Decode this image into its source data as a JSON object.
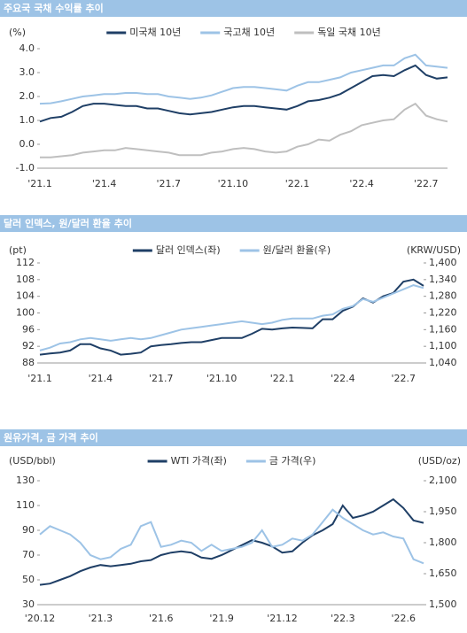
{
  "chart_data": [
    {
      "type": "line",
      "title": "주요국 국채 수익률 추이",
      "ylabel": "(%)",
      "categories": [
        "'21.1",
        null,
        null,
        null,
        null,
        null,
        "'21.4",
        null,
        null,
        null,
        null,
        null,
        "'21.7",
        null,
        null,
        null,
        null,
        null,
        "'21.10",
        null,
        null,
        null,
        null,
        null,
        "'22.1",
        null,
        null,
        null,
        null,
        null,
        "'22.4",
        null,
        null,
        null,
        null,
        null,
        "'22.7",
        null,
        null
      ],
      "ylim": [
        -1,
        4
      ],
      "yticks": [
        {
          "value": -1,
          "label": "-1.0"
        },
        {
          "value": 0,
          "label": "0.0"
        },
        {
          "value": 1,
          "label": "1.0"
        },
        {
          "value": 2,
          "label": "2.0"
        },
        {
          "value": 3,
          "label": "3.0"
        },
        {
          "value": 4,
          "label": "4.0"
        }
      ],
      "series": [
        {
          "name": "미국채 10년",
          "color": "#1f3f66",
          "values": [
            0.95,
            1.1,
            1.15,
            1.35,
            1.6,
            1.7,
            1.7,
            1.65,
            1.6,
            1.6,
            1.5,
            1.5,
            1.4,
            1.3,
            1.25,
            1.3,
            1.35,
            1.45,
            1.55,
            1.6,
            1.6,
            1.55,
            1.5,
            1.45,
            1.6,
            1.8,
            1.85,
            1.95,
            2.1,
            2.35,
            2.6,
            2.85,
            2.9,
            2.85,
            3.1,
            3.3,
            2.9,
            2.75,
            2.8
          ]
        },
        {
          "name": "국고채 10년",
          "color": "#9dc3e6",
          "values": [
            1.7,
            1.72,
            1.8,
            1.9,
            2.0,
            2.05,
            2.1,
            2.1,
            2.15,
            2.15,
            2.1,
            2.1,
            2.0,
            1.95,
            1.9,
            1.95,
            2.05,
            2.2,
            2.35,
            2.4,
            2.4,
            2.35,
            2.3,
            2.25,
            2.45,
            2.6,
            2.6,
            2.7,
            2.8,
            3.0,
            3.1,
            3.2,
            3.3,
            3.3,
            3.6,
            3.75,
            3.3,
            3.25,
            3.2
          ]
        },
        {
          "name": "독일 국채 10년",
          "color": "#bfbfbf",
          "values": [
            -0.55,
            -0.55,
            -0.5,
            -0.45,
            -0.35,
            -0.3,
            -0.25,
            -0.25,
            -0.15,
            -0.2,
            -0.25,
            -0.3,
            -0.35,
            -0.45,
            -0.45,
            -0.45,
            -0.35,
            -0.3,
            -0.2,
            -0.15,
            -0.2,
            -0.3,
            -0.35,
            -0.3,
            -0.1,
            0.0,
            0.2,
            0.15,
            0.4,
            0.55,
            0.8,
            0.9,
            1.0,
            1.05,
            1.45,
            1.7,
            1.2,
            1.05,
            0.95
          ]
        }
      ]
    },
    {
      "type": "line",
      "title": "달러 인덱스, 원/달러 환율 추이",
      "ylabel": "(pt)",
      "y2label": "(KRW/USD)",
      "categories": [
        "'21.1",
        null,
        null,
        null,
        null,
        null,
        "'21.4",
        null,
        null,
        null,
        null,
        null,
        "'21.7",
        null,
        null,
        null,
        null,
        null,
        "'21.10",
        null,
        null,
        null,
        null,
        null,
        "'22.1",
        null,
        null,
        null,
        null,
        null,
        "'22.4",
        null,
        null,
        null,
        null,
        null,
        "'22.7",
        null,
        null
      ],
      "ylim": [
        88,
        112
      ],
      "yticks": [
        88,
        92,
        96,
        100,
        104,
        108,
        112
      ],
      "y2lim": [
        1040,
        1400
      ],
      "y2ticks": [
        {
          "value": 1040,
          "label": "1,040"
        },
        {
          "value": 1100,
          "label": "1,100"
        },
        {
          "value": 1160,
          "label": "1,160"
        },
        {
          "value": 1220,
          "label": "1,220"
        },
        {
          "value": 1280,
          "label": "1,280"
        },
        {
          "value": 1340,
          "label": "1,340"
        },
        {
          "value": 1400,
          "label": "1,400"
        }
      ],
      "series": [
        {
          "name": "달러 인덱스(좌)",
          "color": "#1f3f66",
          "values": [
            90,
            90.3,
            90.5,
            91,
            92.5,
            92.5,
            91.5,
            91,
            90,
            90.2,
            90.5,
            92,
            92.3,
            92.5,
            92.8,
            93,
            93,
            93.5,
            94,
            94,
            94,
            95,
            96.2,
            96,
            96.3,
            96.5,
            96.4,
            96.3,
            98.5,
            98.5,
            100.5,
            101.5,
            103.5,
            102.5,
            104,
            104.8,
            107.5,
            108,
            106.5
          ]
        },
        {
          "name": "원/달러 환율(우)",
          "color": "#9dc3e6",
          "axis": "y2",
          "values": [
            1085,
            1095,
            1110,
            1115,
            1125,
            1130,
            1125,
            1120,
            1125,
            1130,
            1125,
            1130,
            1140,
            1150,
            1160,
            1165,
            1170,
            1175,
            1180,
            1185,
            1190,
            1185,
            1180,
            1185,
            1195,
            1200,
            1200,
            1200,
            1210,
            1215,
            1235,
            1245,
            1270,
            1260,
            1275,
            1290,
            1305,
            1320,
            1310
          ]
        }
      ]
    },
    {
      "type": "line",
      "title": "원유가격, 금 가격 추이",
      "ylabel": "(USD/bbl)",
      "y2label": "(USD/oz)",
      "categories": [
        "'20.12",
        null,
        null,
        null,
        null,
        null,
        "'21.3",
        null,
        null,
        null,
        null,
        null,
        "'21.6",
        null,
        null,
        null,
        null,
        null,
        "'21.9",
        null,
        null,
        null,
        null,
        null,
        "'21.12",
        null,
        null,
        null,
        null,
        null,
        "'22.3",
        null,
        null,
        null,
        null,
        null,
        "'22.6",
        null,
        null
      ],
      "ylim": [
        30,
        130
      ],
      "yticks": [
        30,
        50,
        70,
        90,
        110,
        130
      ],
      "y2lim": [
        1500,
        2100
      ],
      "y2ticks": [
        {
          "value": 1500,
          "label": "1,500"
        },
        {
          "value": 1650,
          "label": "1,650"
        },
        {
          "value": 1800,
          "label": "1,800"
        },
        {
          "value": 1950,
          "label": "1,950"
        },
        {
          "value": 2100,
          "label": "2,100"
        }
      ],
      "series": [
        {
          "name": "WTI 가격(좌)",
          "color": "#1f3f66",
          "values": [
            46,
            47,
            50,
            53,
            57,
            60,
            62,
            61,
            62,
            63,
            65,
            66,
            70,
            72,
            73,
            72,
            68,
            67,
            70,
            74,
            78,
            82,
            80,
            77,
            72,
            73,
            80,
            86,
            90,
            95,
            110,
            100,
            102,
            105,
            110,
            115,
            108,
            98,
            96
          ]
        },
        {
          "name": "금 가격(우)",
          "color": "#9dc3e6",
          "axis": "y2",
          "values": [
            1840,
            1880,
            1860,
            1840,
            1800,
            1740,
            1720,
            1730,
            1770,
            1790,
            1880,
            1900,
            1780,
            1790,
            1810,
            1800,
            1760,
            1790,
            1760,
            1770,
            1780,
            1800,
            1860,
            1780,
            1790,
            1820,
            1810,
            1840,
            1900,
            1960,
            1920,
            1890,
            1860,
            1840,
            1850,
            1830,
            1820,
            1720,
            1700
          ]
        }
      ]
    }
  ]
}
